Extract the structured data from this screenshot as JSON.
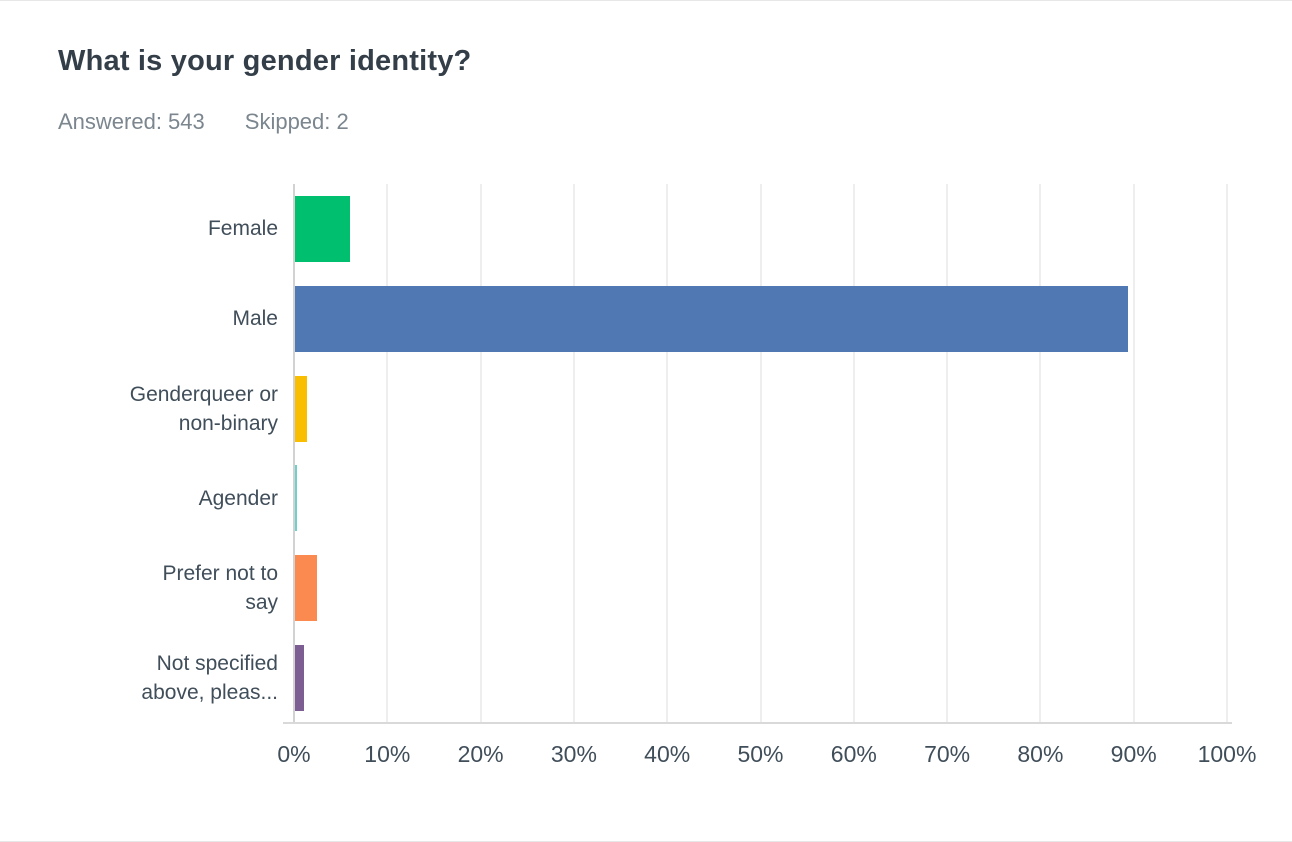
{
  "header": {
    "title": "What is your gender identity?",
    "answered": "Answered: 543",
    "skipped": "Skipped: 2"
  },
  "chart_data": {
    "type": "bar",
    "orientation": "horizontal",
    "title": "What is your gender identity?",
    "answered": 543,
    "skipped": 2,
    "categories": [
      "Female",
      "Male",
      "Genderqueer or non-binary",
      "Agender",
      "Prefer not to say",
      "Not specified above, pleas..."
    ],
    "label_lines": [
      [
        "Female"
      ],
      [
        "Male"
      ],
      [
        "Genderqueer or",
        "non-binary"
      ],
      [
        "Agender"
      ],
      [
        "Prefer not to",
        "say"
      ],
      [
        "Not specified",
        "above, pleas..."
      ]
    ],
    "values": [
      5.89,
      89.32,
      1.29,
      0.18,
      2.39,
      0.92
    ],
    "unit": "%",
    "colors": [
      "#00bf6f",
      "#5079b4",
      "#f9be00",
      "#6fcfcb",
      "#fa8a50",
      "#7d5e93"
    ],
    "xlabel": "",
    "ylabel": "",
    "xlim": [
      0,
      100
    ],
    "x_ticks": [
      "0%",
      "10%",
      "20%",
      "30%",
      "40%",
      "50%",
      "60%",
      "70%",
      "80%",
      "90%",
      "100%"
    ],
    "grid": true,
    "legend_position": "none"
  },
  "colors": {
    "title_text": "#333e48",
    "meta_text": "#7b868f",
    "label_text": "#404e5a",
    "grid_line": "#eeeeee",
    "axis_line": "#d2d2d2",
    "bottom_line": "#d9d9d9",
    "background": "#ffffff"
  }
}
